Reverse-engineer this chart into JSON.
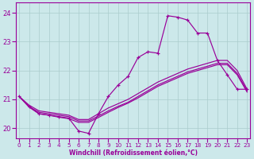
{
  "xlabel": "Windchill (Refroidissement éolien,°C)",
  "bg_color": "#cce8ea",
  "grid_color": "#aacccc",
  "line_color": "#990099",
  "x_ticks": [
    0,
    1,
    2,
    3,
    4,
    5,
    6,
    7,
    8,
    9,
    10,
    11,
    12,
    13,
    14,
    15,
    16,
    17,
    18,
    19,
    20,
    21,
    22,
    23
  ],
  "ylim": [
    19.65,
    24.35
  ],
  "xlim": [
    -0.3,
    23.3
  ],
  "yticks": [
    20,
    21,
    22,
    23,
    24
  ],
  "y_jagged": [
    21.1,
    20.75,
    20.5,
    20.45,
    20.4,
    20.35,
    19.9,
    19.82,
    20.5,
    21.1,
    21.5,
    21.8,
    22.45,
    22.65,
    22.6,
    23.9,
    23.85,
    23.75,
    23.3,
    23.3,
    22.35,
    21.85,
    21.35,
    21.35
  ],
  "y_line2": [
    21.1,
    20.8,
    20.6,
    20.55,
    20.5,
    20.45,
    20.3,
    20.3,
    20.5,
    20.7,
    20.85,
    21.0,
    21.2,
    21.4,
    21.6,
    21.75,
    21.9,
    22.05,
    22.15,
    22.25,
    22.35,
    22.35,
    22.0,
    21.35
  ],
  "y_line3": [
    21.1,
    20.75,
    20.55,
    20.5,
    20.45,
    20.4,
    20.25,
    20.25,
    20.42,
    20.6,
    20.76,
    20.9,
    21.1,
    21.3,
    21.5,
    21.65,
    21.8,
    21.95,
    22.05,
    22.15,
    22.25,
    22.25,
    21.9,
    21.3
  ],
  "y_line4": [
    21.1,
    20.73,
    20.5,
    20.45,
    20.38,
    20.33,
    20.2,
    20.2,
    20.37,
    20.55,
    20.72,
    20.87,
    21.05,
    21.25,
    21.45,
    21.6,
    21.75,
    21.9,
    22.0,
    22.1,
    22.2,
    22.2,
    21.85,
    21.25
  ]
}
